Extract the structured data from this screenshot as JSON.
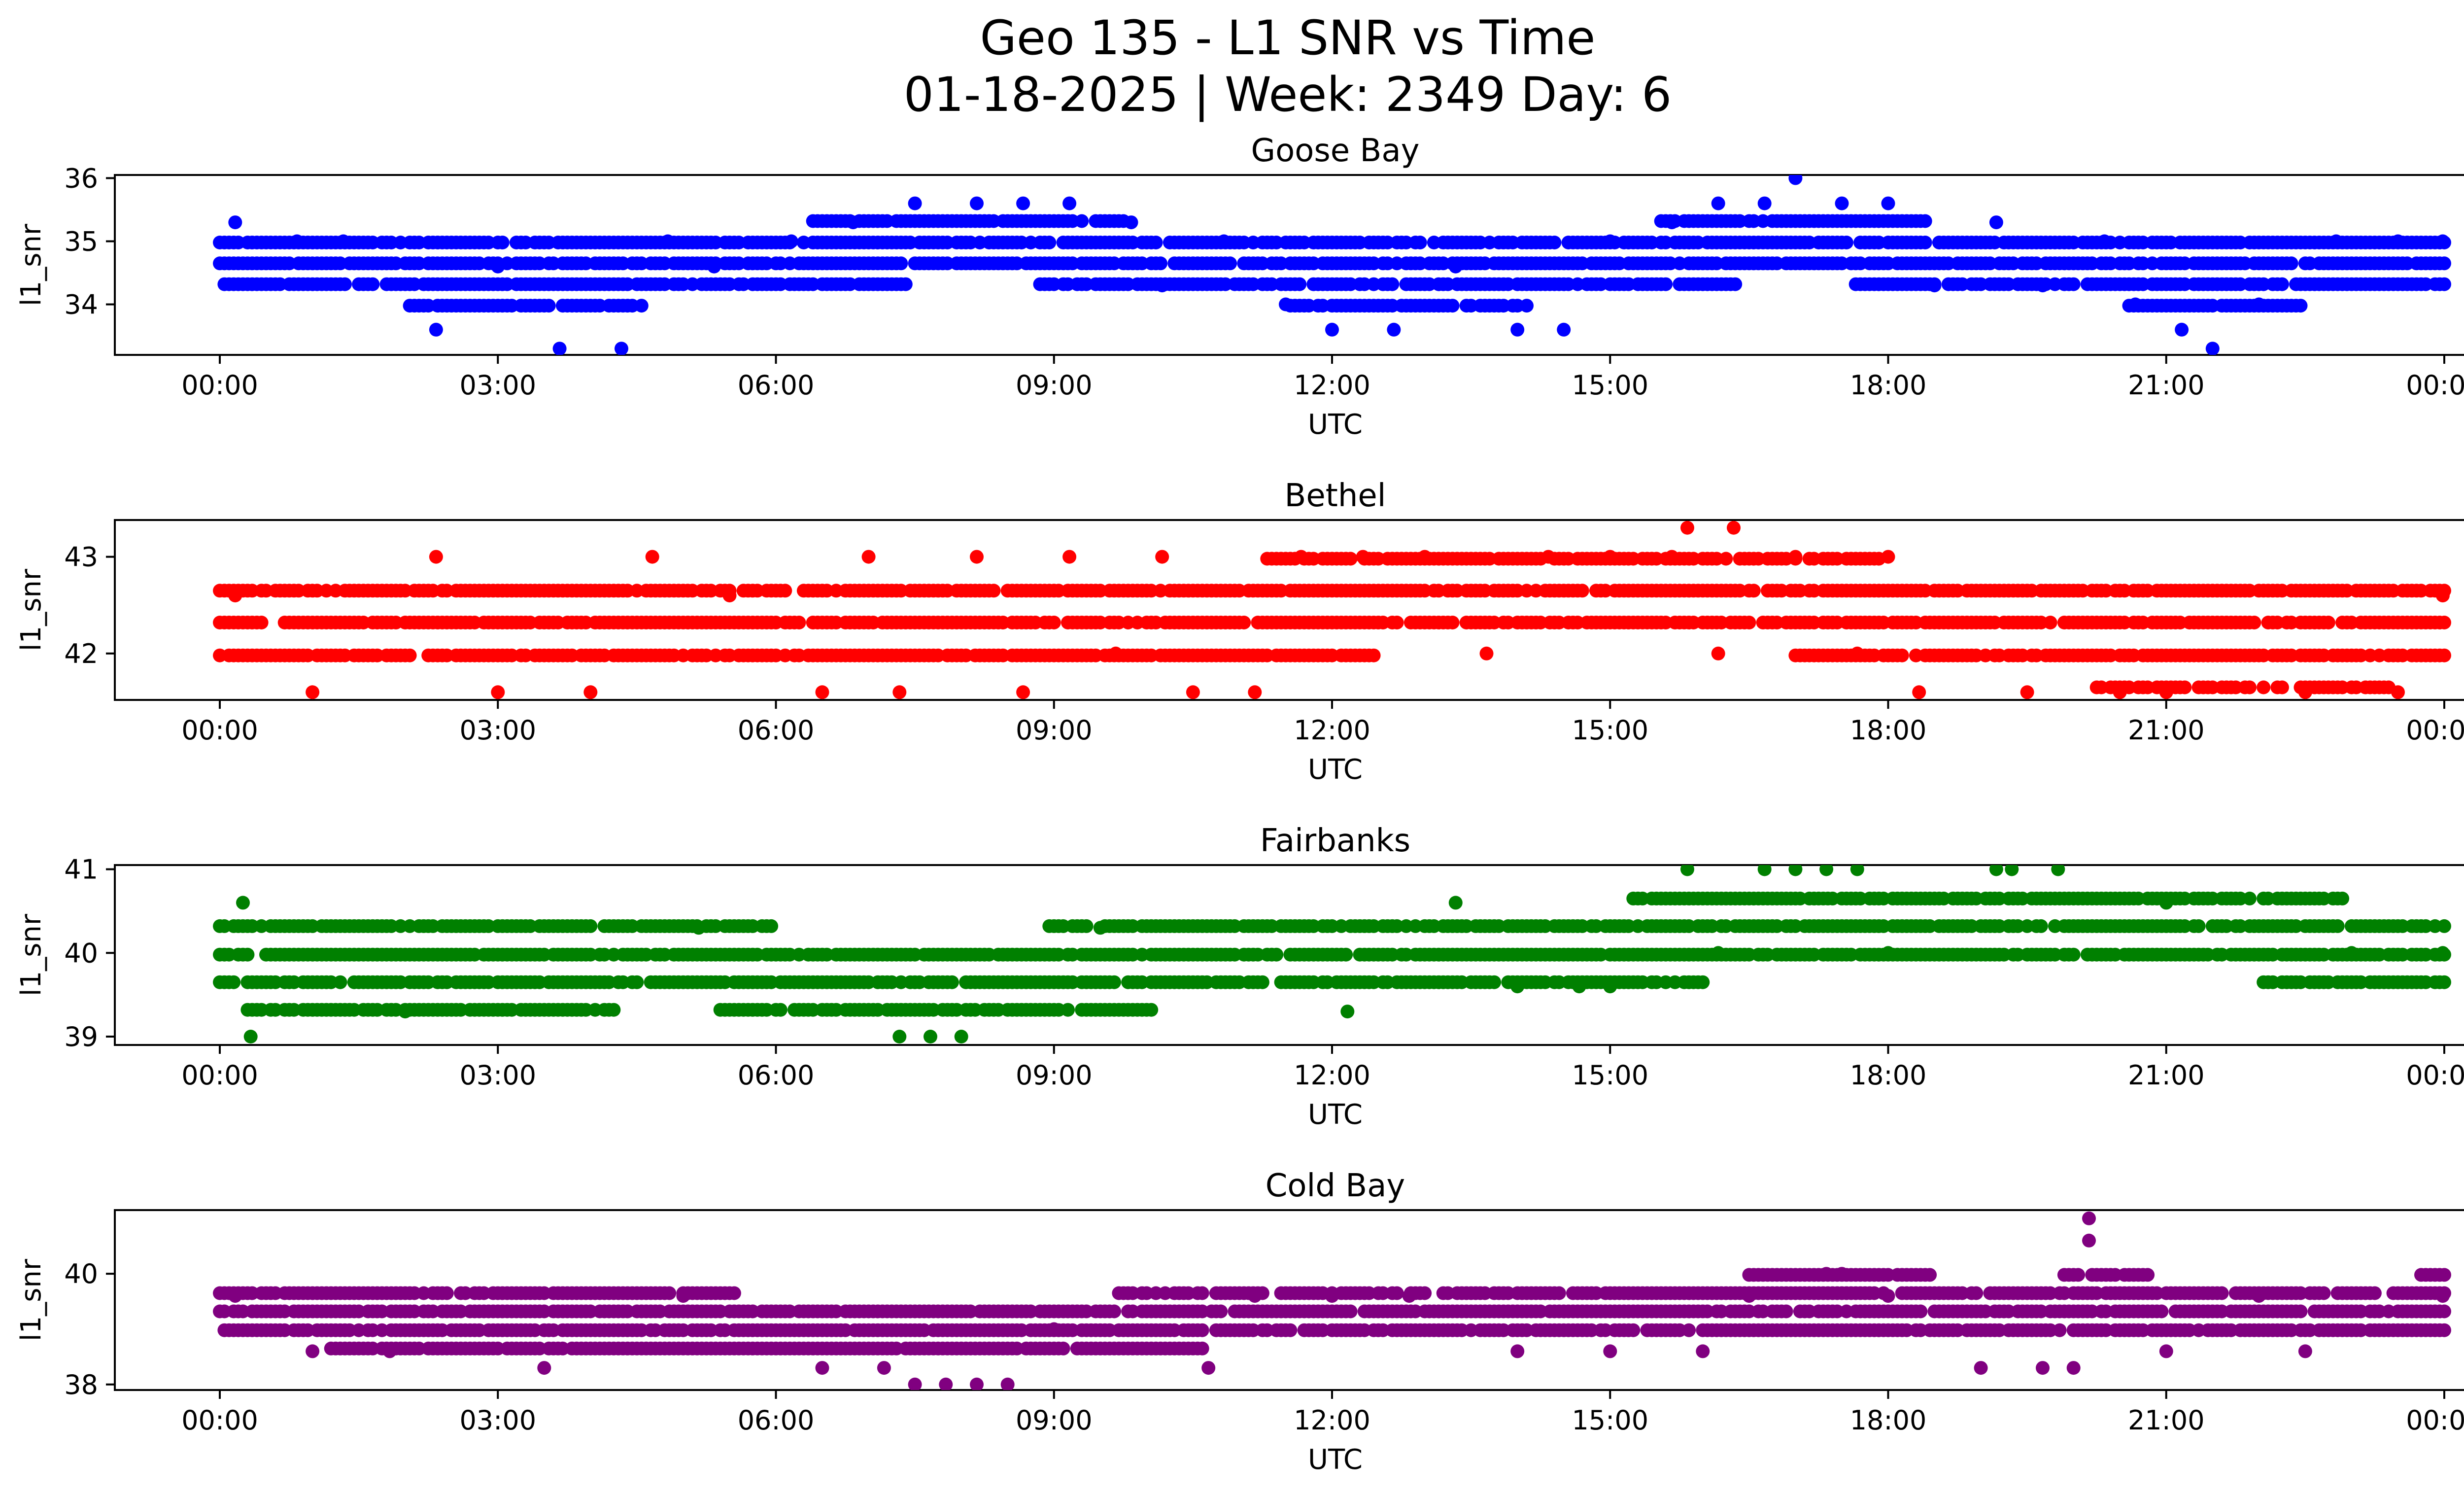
{
  "figure": {
    "title_line1": "Geo 135 - L1 SNR vs Time",
    "title_line2": "01-18-2025 | Week: 2349 Day: 6"
  },
  "chart_data": [
    {
      "type": "scatter",
      "title": "Goose Bay",
      "xlabel": "UTC",
      "ylabel": "l1_snr",
      "color": "#0000ff",
      "x_ticks": [
        "00:00",
        "03:00",
        "06:00",
        "09:00",
        "12:00",
        "15:00",
        "18:00",
        "21:00",
        "00:00"
      ],
      "y_ticks": [
        34,
        35,
        36
      ],
      "ylim": [
        33.2,
        36.05
      ],
      "series": [
        {
          "x_start": "00:00",
          "x_end": "24:00",
          "points": [
            [
              "00:10",
              35.3
            ],
            [
              "00:50",
              35.0
            ],
            [
              "01:20",
              35.0
            ],
            [
              "02:20",
              33.6
            ],
            [
              "03:00",
              34.6
            ],
            [
              "03:40",
              33.3
            ],
            [
              "04:20",
              33.3
            ],
            [
              "04:50",
              35.0
            ],
            [
              "05:20",
              34.6
            ],
            [
              "06:10",
              35.0
            ],
            [
              "06:50",
              35.3
            ],
            [
              "07:30",
              35.6
            ],
            [
              "08:10",
              35.6
            ],
            [
              "08:40",
              35.6
            ],
            [
              "09:10",
              35.6
            ],
            [
              "09:50",
              35.3
            ],
            [
              "10:10",
              34.3
            ],
            [
              "10:50",
              35.0
            ],
            [
              "11:30",
              34.0
            ],
            [
              "12:00",
              33.6
            ],
            [
              "12:40",
              33.6
            ],
            [
              "13:20",
              34.6
            ],
            [
              "14:00",
              33.6
            ],
            [
              "14:30",
              33.6
            ],
            [
              "15:00",
              35.0
            ],
            [
              "15:40",
              35.3
            ],
            [
              "16:10",
              35.6
            ],
            [
              "16:40",
              35.6
            ],
            [
              "17:00",
              36.0
            ],
            [
              "17:30",
              35.6
            ],
            [
              "18:00",
              35.6
            ],
            [
              "18:30",
              34.3
            ],
            [
              "19:10",
              35.3
            ],
            [
              "19:40",
              34.3
            ],
            [
              "20:20",
              35.0
            ],
            [
              "20:40",
              34.0
            ],
            [
              "21:10",
              33.6
            ],
            [
              "21:30",
              33.3
            ],
            [
              "22:00",
              34.0
            ],
            [
              "22:50",
              35.0
            ],
            [
              "23:30",
              35.0
            ],
            [
              "23:59",
              35.0
            ]
          ]
        }
      ]
    },
    {
      "type": "scatter",
      "title": "Bethel",
      "xlabel": "UTC",
      "ylabel": "l1_snr",
      "color": "#ff0000",
      "x_ticks": [
        "00:00",
        "03:00",
        "06:00",
        "09:00",
        "12:00",
        "15:00",
        "18:00",
        "21:00",
        "00:00"
      ],
      "y_ticks": [
        42,
        43
      ],
      "ylim": [
        41.52,
        43.38
      ],
      "series": [
        {
          "x_start": "00:00",
          "x_end": "24:00",
          "points": [
            [
              "00:10",
              42.6
            ],
            [
              "01:00",
              41.6
            ],
            [
              "02:20",
              43.0
            ],
            [
              "03:00",
              41.6
            ],
            [
              "04:00",
              41.6
            ],
            [
              "04:40",
              43.0
            ],
            [
              "05:30",
              42.6
            ],
            [
              "06:30",
              41.6
            ],
            [
              "07:00",
              43.0
            ],
            [
              "07:20",
              41.6
            ],
            [
              "08:10",
              43.0
            ],
            [
              "08:40",
              41.6
            ],
            [
              "09:10",
              43.0
            ],
            [
              "09:40",
              42.0
            ],
            [
              "10:10",
              43.0
            ],
            [
              "10:30",
              41.6
            ],
            [
              "11:10",
              41.6
            ],
            [
              "11:40",
              43.0
            ],
            [
              "12:20",
              43.0
            ],
            [
              "13:00",
              43.0
            ],
            [
              "13:40",
              42.0
            ],
            [
              "14:20",
              43.0
            ],
            [
              "15:00",
              43.0
            ],
            [
              "15:40",
              43.0
            ],
            [
              "15:50",
              43.3
            ],
            [
              "16:10",
              42.0
            ],
            [
              "16:20",
              43.3
            ],
            [
              "17:00",
              43.0
            ],
            [
              "17:40",
              42.0
            ],
            [
              "18:00",
              43.0
            ],
            [
              "18:20",
              41.6
            ],
            [
              "19:30",
              41.6
            ],
            [
              "20:30",
              41.6
            ],
            [
              "21:00",
              41.6
            ],
            [
              "22:30",
              41.6
            ],
            [
              "23:30",
              41.6
            ],
            [
              "23:59",
              42.6
            ]
          ]
        }
      ]
    },
    {
      "type": "scatter",
      "title": "Fairbanks",
      "xlabel": "UTC",
      "ylabel": "l1_snr",
      "color": "#008000",
      "x_ticks": [
        "00:00",
        "03:00",
        "06:00",
        "09:00",
        "12:00",
        "15:00",
        "18:00",
        "21:00",
        "00:00"
      ],
      "y_ticks": [
        39,
        40,
        41
      ],
      "ylim": [
        38.9,
        41.05
      ],
      "series": [
        {
          "x_start": "00:00",
          "x_end": "24:00",
          "points": [
            [
              "00:15",
              40.6
            ],
            [
              "00:20",
              39.0
            ],
            [
              "02:00",
              39.3
            ],
            [
              "05:10",
              40.3
            ],
            [
              "07:20",
              39.0
            ],
            [
              "07:40",
              39.0
            ],
            [
              "08:00",
              39.0
            ],
            [
              "09:30",
              40.3
            ],
            [
              "12:10",
              39.3
            ],
            [
              "13:20",
              40.6
            ],
            [
              "14:00",
              39.6
            ],
            [
              "14:40",
              39.6
            ],
            [
              "15:00",
              39.6
            ],
            [
              "15:50",
              41.0
            ],
            [
              "16:10",
              40.0
            ],
            [
              "16:40",
              41.0
            ],
            [
              "17:00",
              41.0
            ],
            [
              "17:20",
              41.0
            ],
            [
              "17:40",
              41.0
            ],
            [
              "18:00",
              40.0
            ],
            [
              "19:10",
              41.0
            ],
            [
              "19:20",
              41.0
            ],
            [
              "19:50",
              41.0
            ],
            [
              "21:00",
              40.6
            ],
            [
              "23:00",
              40.0
            ],
            [
              "23:59",
              40.0
            ]
          ]
        }
      ]
    },
    {
      "type": "scatter",
      "title": "Cold Bay",
      "xlabel": "UTC",
      "ylabel": "l1_snr",
      "color": "#800080",
      "x_ticks": [
        "00:00",
        "03:00",
        "06:00",
        "09:00",
        "12:00",
        "15:00",
        "18:00",
        "21:00",
        "00:00"
      ],
      "y_ticks": [
        38,
        40
      ],
      "ylim": [
        37.9,
        41.15
      ],
      "series": [
        {
          "x_start": "00:00",
          "x_end": "24:00",
          "points": [
            [
              "00:10",
              39.6
            ],
            [
              "01:00",
              38.6
            ],
            [
              "01:50",
              38.6
            ],
            [
              "03:30",
              38.3
            ],
            [
              "05:00",
              39.6
            ],
            [
              "06:30",
              38.3
            ],
            [
              "07:10",
              38.3
            ],
            [
              "07:30",
              38.0
            ],
            [
              "07:50",
              38.0
            ],
            [
              "08:10",
              38.0
            ],
            [
              "08:30",
              38.0
            ],
            [
              "09:00",
              39.0
            ],
            [
              "10:40",
              38.3
            ],
            [
              "11:10",
              39.6
            ],
            [
              "12:00",
              39.6
            ],
            [
              "12:50",
              39.6
            ],
            [
              "14:00",
              38.6
            ],
            [
              "15:00",
              38.6
            ],
            [
              "16:00",
              38.6
            ],
            [
              "16:30",
              39.6
            ],
            [
              "17:20",
              40.0
            ],
            [
              "17:30",
              40.0
            ],
            [
              "18:00",
              39.6
            ],
            [
              "19:00",
              38.3
            ],
            [
              "19:40",
              38.3
            ],
            [
              "20:00",
              38.3
            ],
            [
              "20:10",
              41.0
            ],
            [
              "20:10",
              40.6
            ],
            [
              "21:00",
              38.6
            ],
            [
              "22:00",
              39.6
            ],
            [
              "22:30",
              38.6
            ],
            [
              "23:59",
              39.6
            ]
          ]
        }
      ]
    }
  ]
}
